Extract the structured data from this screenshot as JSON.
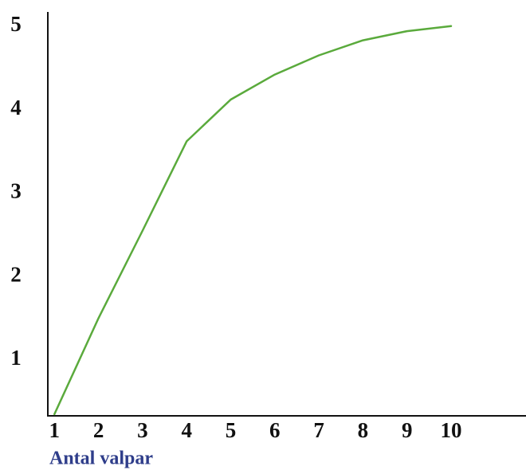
{
  "chart_data": {
    "type": "line",
    "x_label": "Antal valpar",
    "x": [
      1,
      2,
      3,
      4,
      5,
      6,
      7,
      8,
      9,
      10
    ],
    "values": [
      0.35,
      1.5,
      2.55,
      3.62,
      4.12,
      4.42,
      4.65,
      4.83,
      4.94,
      5.0
    ],
    "color": "#5aaa3c",
    "xlim": [
      0.85,
      11.7
    ],
    "xticks": [
      1,
      2,
      3,
      4,
      5,
      6,
      7,
      8,
      9,
      10
    ],
    "ylim": [
      0.33,
      5.17
    ],
    "yticks": [
      1,
      2,
      3,
      4,
      5
    ],
    "grid": false
  }
}
